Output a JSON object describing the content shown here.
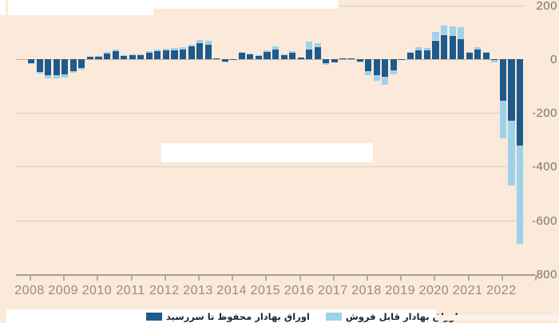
{
  "chart_data": {
    "type": "bar",
    "stacked": true,
    "title": "",
    "x_tick_labels": [
      "2008",
      "2009",
      "2010",
      "2011",
      "2012",
      "2013",
      "2014",
      "2015",
      "2016",
      "2017",
      "2018",
      "2019",
      "2020",
      "2021",
      "2022"
    ],
    "y_ticks": [
      200,
      0,
      -200,
      -400,
      -600,
      -800
    ],
    "y_tick_labels": [
      "200",
      "0",
      "-200",
      "-400",
      "-600",
      "-800"
    ],
    "ylim": [
      -800,
      200
    ],
    "legend_position": "bottom",
    "quarters": [
      "2008Q1",
      "2008Q2",
      "2008Q3",
      "2008Q4",
      "2009Q1",
      "2009Q2",
      "2009Q3",
      "2009Q4",
      "2010Q1",
      "2010Q2",
      "2010Q3",
      "2010Q4",
      "2011Q1",
      "2011Q2",
      "2011Q3",
      "2011Q4",
      "2012Q1",
      "2012Q2",
      "2012Q3",
      "2012Q4",
      "2013Q1",
      "2013Q2",
      "2013Q3",
      "2013Q4",
      "2014Q1",
      "2014Q2",
      "2014Q3",
      "2014Q4",
      "2015Q1",
      "2015Q2",
      "2015Q3",
      "2015Q4",
      "2016Q1",
      "2016Q2",
      "2016Q3",
      "2016Q4",
      "2017Q1",
      "2017Q2",
      "2017Q3",
      "2017Q4",
      "2018Q1",
      "2018Q2",
      "2018Q3",
      "2018Q4",
      "2019Q1",
      "2019Q2",
      "2019Q3",
      "2019Q4",
      "2020Q1",
      "2020Q2",
      "2020Q3",
      "2020Q4",
      "2021Q1",
      "2021Q2",
      "2021Q3",
      "2021Q4",
      "2022Q1",
      "2022Q2",
      "2022Q3"
    ],
    "series": [
      {
        "name": "اوراق بهادار محفوظ تا سررسید",
        "color": "#1f5a8c",
        "values": [
          -15,
          -48,
          -60,
          -58,
          -55,
          -45,
          -33,
          9,
          11,
          22,
          29,
          13,
          15,
          15,
          25,
          29,
          33,
          34,
          36,
          47,
          60,
          55,
          4,
          -9,
          -3,
          24,
          17,
          13,
          27,
          35,
          15,
          24,
          7,
          37,
          45,
          -15,
          -12,
          2,
          4,
          -8,
          -45,
          -58,
          -65,
          -42,
          -3,
          24,
          32,
          33,
          70,
          90,
          85,
          75,
          25,
          37,
          24,
          -2,
          -155,
          -230,
          -322
        ]
      },
      {
        "name": "اوراق بهادار قابل فروش",
        "color": "#9ed2ea",
        "values": [
          -3,
          -7,
          -10,
          -14,
          -12,
          -7,
          -5,
          1,
          2,
          4,
          6,
          2,
          3,
          3,
          5,
          6,
          7,
          8,
          9,
          8,
          12,
          13,
          0,
          -3,
          -1,
          3,
          3,
          2,
          6,
          13,
          3,
          6,
          1,
          30,
          15,
          -5,
          -1,
          0,
          1,
          -2,
          -15,
          -22,
          -30,
          -16,
          0,
          4,
          12,
          10,
          30,
          35,
          37,
          43,
          2,
          8,
          3,
          -11,
          -140,
          -240,
          -366
        ]
      }
    ]
  },
  "legend": {
    "htm_label": "اوراق بهادار محفوظ تا سررسید",
    "afs_label": "اوراق بهادار قابل فروش"
  },
  "colors": {
    "background": "#fbe9d9",
    "htm_bar": "#1f5a8c",
    "afs_bar": "#9ed2ea",
    "gridline": "#ddcfc2",
    "axis_line": "#a59e96",
    "x_label": "#968c82",
    "y_label": "#7b756f",
    "legend_text": "#1a2433",
    "whiteout": "#ffffff"
  }
}
